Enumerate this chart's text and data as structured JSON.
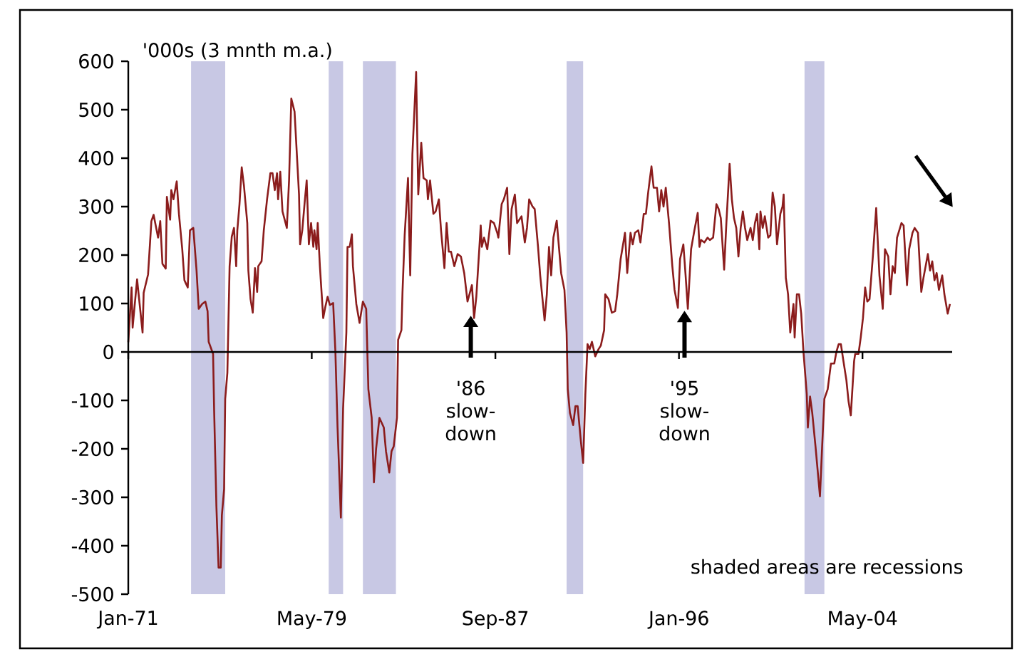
{
  "chart_data": {
    "type": "line",
    "ylabel": "'000s (3 mnth m.a.)",
    "color": "#8b1c1c",
    "line_style": "solid",
    "x": [
      "1971-01-01",
      "1971-02-25",
      "1971-03-14",
      "1971-05-27",
      "1971-08-26",
      "1971-09-13",
      "1971-11-25",
      "1972-01-19",
      "1972-02-25",
      "1972-05-09",
      "1972-06-14",
      "1972-07-20",
      "1972-09-13",
      "1972-10-02",
      "1972-11-25",
      "1972-12-14",
      "1973-01-19",
      "1973-03-14",
      "1973-04-20",
      "1973-06-14",
      "1973-07-20",
      "1973-09-13",
      "1973-10-20",
      "1973-12-14",
      "1974-02-06",
      "1974-03-14",
      "1974-05-09",
      "1974-07-02",
      "1974-08-08",
      "1974-08-26",
      "1974-11-07",
      "1974-11-25",
      "1975-01-01",
      "1975-02-06",
      "1975-03-14",
      "1975-04-02",
      "1975-05-09",
      "1975-05-27",
      "1975-07-02",
      "1975-08-08",
      "1975-09-13",
      "1975-10-20",
      "1975-11-25",
      "1975-12-14",
      "1976-01-19",
      "1976-02-25",
      "1976-04-02",
      "1976-05-27",
      "1976-06-14",
      "1976-07-20",
      "1976-08-26",
      "1976-10-02",
      "1976-11-07",
      "1976-11-25",
      "1977-01-19",
      "1977-02-25",
      "1977-04-20",
      "1977-06-14",
      "1977-07-20",
      "1977-08-26",
      "1977-10-02",
      "1977-10-20",
      "1977-11-25",
      "1978-01-01",
      "1978-03-14",
      "1978-04-20",
      "1978-05-27",
      "1978-07-20",
      "1978-10-02",
      "1978-10-20",
      "1978-11-25",
      "1979-01-01",
      "1979-02-06",
      "1979-03-14",
      "1979-04-20",
      "1979-05-27",
      "1979-06-14",
      "1979-07-20",
      "1979-08-08",
      "1979-09-13",
      "1979-11-07",
      "1979-12-14",
      "1980-01-19",
      "1980-02-25",
      "1980-04-20",
      "1980-05-27",
      "1980-07-02",
      "1980-08-26",
      "1980-10-02",
      "1980-11-25",
      "1980-12-14",
      "1981-01-19",
      "1981-02-25",
      "1981-03-14",
      "1981-05-09",
      "1981-07-02",
      "1981-08-26",
      "1981-10-20",
      "1981-11-25",
      "1982-01-19",
      "1982-02-25",
      "1982-04-02",
      "1982-05-27",
      "1982-08-08",
      "1982-09-13",
      "1982-11-07",
      "1982-12-14",
      "1983-01-19",
      "1983-03-14",
      "1983-04-02",
      "1983-05-27",
      "1983-06-14",
      "1983-07-20",
      "1983-09-13",
      "1983-10-20",
      "1983-11-25",
      "1984-01-26",
      "1984-03-01",
      "1984-04-20",
      "1984-05-27",
      "1984-07-20",
      "1984-08-08",
      "1984-09-13",
      "1984-11-07",
      "1984-12-14",
      "1985-02-06",
      "1985-03-14",
      "1985-05-09",
      "1985-06-14",
      "1985-07-20",
      "1985-08-26",
      "1985-10-20",
      "1985-12-14",
      "1986-02-06",
      "1986-04-02",
      "1986-05-27",
      "1986-08-08",
      "1986-09-13",
      "1986-10-20",
      "1987-01-01",
      "1987-01-19",
      "1987-02-25",
      "1987-04-20",
      "1987-06-14",
      "1987-08-08",
      "1987-10-02",
      "1987-10-20",
      "1987-12-14",
      "1988-01-19",
      "1988-03-14",
      "1988-04-20",
      "1988-05-27",
      "1988-07-20",
      "1988-08-26",
      "1988-11-07",
      "1989-01-01",
      "1989-02-06",
      "1989-03-14",
      "1989-05-09",
      "1989-06-14",
      "1989-08-08",
      "1989-09-13",
      "1989-11-25",
      "1990-01-01",
      "1990-02-06",
      "1990-03-14",
      "1990-04-20",
      "1990-06-14",
      "1990-08-26",
      "1990-10-20",
      "1990-11-25",
      "1990-12-14",
      "1991-01-19",
      "1991-03-14",
      "1991-04-20",
      "1991-05-27",
      "1991-07-20",
      "1991-08-26",
      "1991-10-02",
      "1991-11-07",
      "1991-12-14",
      "1992-01-19",
      "1992-03-14",
      "1992-05-09",
      "1992-06-14",
      "1992-08-08",
      "1992-08-26",
      "1992-10-20",
      "1992-12-14",
      "1993-02-06",
      "1993-03-14",
      "1993-05-09",
      "1993-07-20",
      "1993-08-26",
      "1993-10-20",
      "1993-11-25",
      "1994-01-01",
      "1994-02-25",
      "1994-04-02",
      "1994-05-27",
      "1994-07-02",
      "1994-08-08",
      "1994-10-02",
      "1994-11-07",
      "1995-01-01",
      "1995-02-06",
      "1995-03-14",
      "1995-04-20",
      "1995-05-27",
      "1995-07-20",
      "1995-09-13",
      "1995-10-20",
      "1995-12-14",
      "1996-01-19",
      "1996-03-14",
      "1996-04-20",
      "1996-05-27",
      "1996-07-20",
      "1996-09-13",
      "1996-11-07",
      "1996-12-06",
      "1997-01-01",
      "1997-02-25",
      "1997-04-20",
      "1997-05-27",
      "1997-07-20",
      "1997-09-13",
      "1997-10-20",
      "1997-11-25",
      "1998-01-19",
      "1998-02-25",
      "1998-04-20",
      "1998-05-27",
      "1998-07-02",
      "1998-08-08",
      "1998-09-13",
      "1998-10-20",
      "1998-11-25",
      "1999-01-01",
      "1999-02-06",
      "1999-04-02",
      "1999-05-09",
      "1999-06-14",
      "1999-07-20",
      "1999-08-26",
      "1999-09-13",
      "1999-10-20",
      "1999-11-25",
      "2000-01-19",
      "2000-02-25",
      "2000-04-02",
      "2000-05-09",
      "2000-06-14",
      "2000-08-08",
      "2000-09-13",
      "2000-10-02",
      "2000-11-07",
      "2000-12-14",
      "2001-01-19",
      "2001-03-14",
      "2001-04-02",
      "2001-05-09",
      "2001-06-14",
      "2001-07-20",
      "2001-08-26",
      "2001-10-20",
      "2001-11-07",
      "2001-12-14",
      "2002-01-19",
      "2002-03-14",
      "2002-05-27",
      "2002-07-02",
      "2002-08-08",
      "2002-10-02",
      "2002-11-25",
      "2003-01-19",
      "2003-02-25",
      "2003-04-02",
      "2003-05-09",
      "2003-06-14",
      "2003-08-08",
      "2003-09-13",
      "2003-10-20",
      "2003-12-14",
      "2004-01-01",
      "2004-02-25",
      "2004-04-02",
      "2004-05-09",
      "2004-06-14",
      "2004-07-20",
      "2004-08-26",
      "2004-10-20",
      "2004-12-14",
      "2005-02-06",
      "2005-04-02",
      "2005-05-09",
      "2005-07-02",
      "2005-08-08",
      "2005-09-13",
      "2005-10-20",
      "2005-11-25",
      "2006-02-06",
      "2006-03-14",
      "2006-05-09",
      "2006-06-14",
      "2006-08-08",
      "2006-09-13",
      "2006-11-07",
      "2007-01-01",
      "2007-02-06",
      "2007-03-14",
      "2007-04-20",
      "2007-05-27",
      "2007-07-02",
      "2007-08-08",
      "2007-09-13",
      "2007-10-20",
      "2007-12-14",
      "2008-01-19",
      "2008-03-14",
      "2008-04-20"
    ],
    "values": [
      20,
      133,
      50,
      150,
      40,
      122,
      160,
      270,
      283,
      236,
      270,
      182,
      172,
      320,
      273,
      334,
      315,
      352,
      285,
      212,
      148,
      133,
      251,
      256,
      168,
      89,
      99,
      104,
      84,
      21,
      -4,
      -122,
      -318,
      -445,
      -445,
      -337,
      -283,
      -97,
      -43,
      177,
      238,
      256,
      177,
      251,
      305,
      381,
      343,
      266,
      168,
      109,
      81,
      173,
      124,
      177,
      187,
      251,
      315,
      369,
      369,
      334,
      369,
      315,
      372,
      290,
      256,
      354,
      523,
      496,
      325,
      222,
      251,
      305,
      354,
      222,
      266,
      217,
      251,
      212,
      266,
      177,
      70,
      94,
      114,
      97,
      101,
      1,
      -156,
      -342,
      -117,
      40,
      217,
      217,
      243,
      177,
      99,
      60,
      104,
      89,
      -77,
      -136,
      -269,
      -200,
      -136,
      -156,
      -205,
      -249,
      -205,
      -195,
      -136,
      25,
      45,
      124,
      241,
      359,
      158,
      408,
      578,
      325,
      432,
      359,
      354,
      315,
      354,
      285,
      290,
      315,
      251,
      173,
      266,
      207,
      207,
      177,
      202,
      197,
      163,
      104,
      138,
      70,
      114,
      261,
      217,
      236,
      212,
      271,
      266,
      246,
      236,
      305,
      315,
      339,
      202,
      295,
      325,
      266,
      280,
      226,
      256,
      315,
      300,
      295,
      217,
      158,
      65,
      119,
      217,
      158,
      236,
      271,
      163,
      128,
      40,
      -77,
      -126,
      -151,
      -112,
      -112,
      -185,
      -229,
      -87,
      16,
      6,
      21,
      -9,
      6,
      13,
      45,
      119,
      109,
      81,
      84,
      119,
      192,
      246,
      163,
      246,
      222,
      246,
      251,
      226,
      285,
      285,
      329,
      383,
      339,
      339,
      290,
      334,
      300,
      339,
      266,
      177,
      128,
      91,
      192,
      222,
      158,
      89,
      212,
      251,
      287,
      217,
      231,
      226,
      236,
      231,
      236,
      305,
      295,
      276,
      170,
      266,
      388,
      315,
      276,
      256,
      197,
      256,
      290,
      256,
      231,
      256,
      231,
      266,
      285,
      212,
      290,
      256,
      280,
      236,
      241,
      329,
      300,
      222,
      285,
      300,
      325,
      153,
      119,
      40,
      99,
      30,
      119,
      119,
      79,
      1,
      -87,
      -156,
      -92,
      -126,
      -195,
      -298,
      -195,
      -97,
      -77,
      -24,
      -24,
      1,
      16,
      16,
      -14,
      -58,
      -102,
      -131,
      -19,
      -4,
      -4,
      30,
      70,
      133,
      104,
      109,
      197,
      297,
      158,
      89,
      212,
      197,
      119,
      177,
      163,
      236,
      266,
      261,
      138,
      212,
      246,
      256,
      246,
      124,
      153,
      177,
      202,
      168,
      187,
      148,
      163,
      128,
      158,
      119,
      79,
      99
    ],
    "xlim": [
      "1971-01-01",
      "2008-05-27"
    ],
    "ylim": [
      -500,
      600
    ],
    "xticks": [
      {
        "value": "1971-01-01",
        "label": "Jan-71"
      },
      {
        "value": "1979-05-01",
        "label": "May-79"
      },
      {
        "value": "1987-09-01",
        "label": "Sep-87"
      },
      {
        "value": "1996-01-01",
        "label": "Jan-96"
      },
      {
        "value": "2004-05-01",
        "label": "May-04"
      }
    ],
    "yticks": [
      -500,
      -400,
      -300,
      -200,
      -100,
      0,
      100,
      200,
      300,
      400,
      500,
      600
    ],
    "bands": [
      {
        "axis": "x",
        "from": "1973-11-07",
        "to": "1975-05-27",
        "color": "#c8c8e4"
      },
      {
        "axis": "x",
        "from": "1980-02-06",
        "to": "1980-10-02",
        "color": "#c8c8e4"
      },
      {
        "axis": "x",
        "from": "1981-08-26",
        "to": "1983-02-25",
        "color": "#c8c8e4"
      },
      {
        "axis": "x",
        "from": "1990-11-25",
        "to": "1991-08-26",
        "color": "#c8c8e4"
      },
      {
        "axis": "x",
        "from": "2001-09-13",
        "to": "2002-08-08",
        "color": "#c8c8e4"
      }
    ],
    "annotations": [
      {
        "text": "'86 slow-down",
        "x": "1986-07-20",
        "y": 75
      },
      {
        "text": "'95 slow-down",
        "x": "1996-04-02",
        "y": 85
      },
      "shaded areas are recessions"
    ]
  }
}
